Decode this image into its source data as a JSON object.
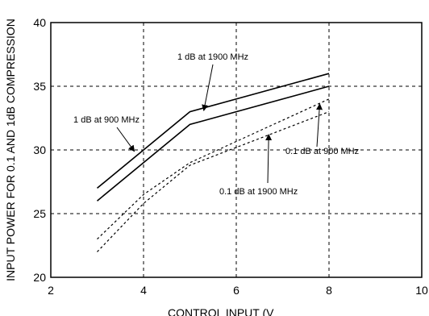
{
  "chart_data": {
    "type": "line",
    "xlabel": "CONTROL INPUT (V",
    "ylabel": "INPUT POWER FOR 0.1 AND 1dB COMPRESSION",
    "xlim": [
      2,
      10
    ],
    "ylim": [
      20,
      40
    ],
    "xticks": [
      "2",
      "4",
      "6",
      "8",
      "10"
    ],
    "yticks": [
      "20",
      "25",
      "30",
      "35",
      "40"
    ],
    "grid": true,
    "grid_style": "dashed",
    "series": [
      {
        "name": "1 dB at 1900 MHz",
        "line_style": "solid",
        "x": [
          3,
          5,
          8
        ],
        "y": [
          27,
          33,
          36
        ]
      },
      {
        "name": "1 dB at 900 MHz",
        "line_style": "solid",
        "x": [
          3,
          5,
          8
        ],
        "y": [
          26,
          32,
          35
        ]
      },
      {
        "name": "0.1 dB at 900 MHz",
        "line_style": "dashed",
        "x": [
          3,
          4,
          5,
          8
        ],
        "y": [
          23,
          26.5,
          29,
          34
        ]
      },
      {
        "name": "0.1 dB at 1900 MHz",
        "line_style": "dashed",
        "x": [
          3,
          4,
          5,
          8
        ],
        "y": [
          22,
          25.8,
          28.8,
          33
        ]
      }
    ],
    "annotations": [
      {
        "text": "1 dB at 1900 MHz",
        "points_to": {
          "x": 5.3,
          "y": 33.1
        }
      },
      {
        "text": "1 dB at 900 MHz",
        "points_to": {
          "x": 3.8,
          "y": 29.9
        }
      },
      {
        "text": "0.1 dB at 900 MHz",
        "points_to": {
          "x": 7.8,
          "y": 33.6
        }
      },
      {
        "text": "0.1 dB at 1900 MHz",
        "points_to": {
          "x": 6.7,
          "y": 31.2
        }
      }
    ]
  }
}
